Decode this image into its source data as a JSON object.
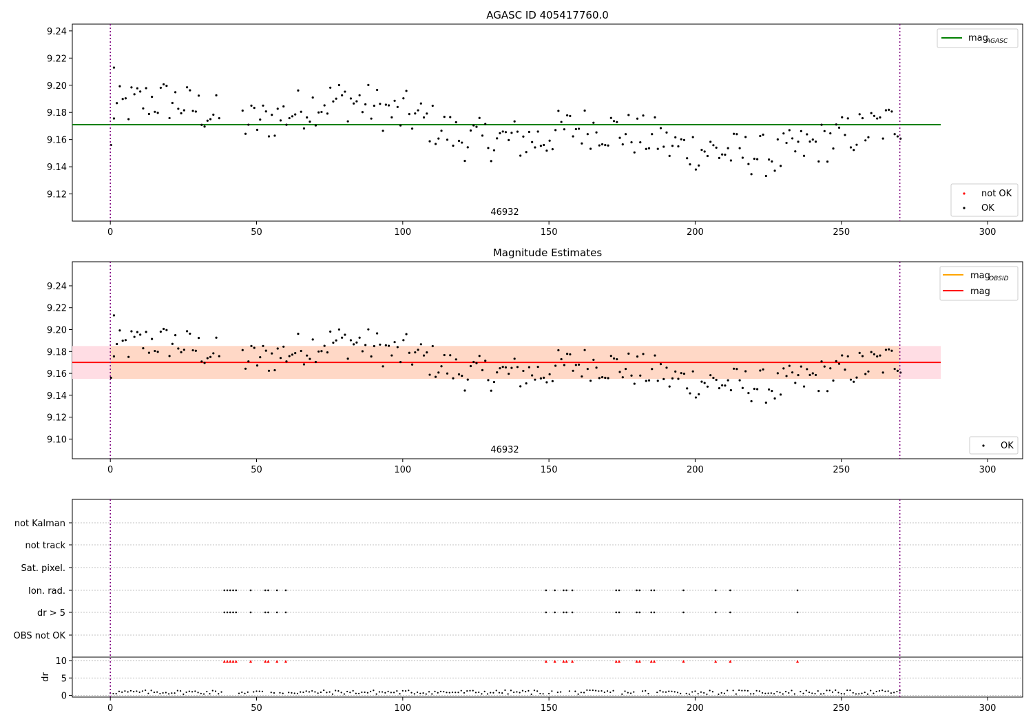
{
  "chart_data": [
    {
      "type": "scatter",
      "title": "AGASC ID 405417760.0",
      "annotation": "46932",
      "xlim": [
        -13,
        312
      ],
      "ylim": [
        9.1,
        9.245
      ],
      "xticks": [
        0,
        50,
        100,
        150,
        200,
        250,
        300
      ],
      "yticks": [
        9.12,
        9.14,
        9.16,
        9.18,
        9.2,
        9.22,
        9.24
      ],
      "ytick_labels": [
        "9.12",
        "9.14",
        "9.16",
        "9.18",
        "9.20",
        "9.22",
        "9.24"
      ],
      "grid": false,
      "legend_lines": [
        {
          "label": "mag",
          "sub": "AGASC",
          "color": "#008000"
        }
      ],
      "legend_points": [
        {
          "label": "not OK",
          "color": "#ff0000"
        },
        {
          "label": "OK",
          "color": "#000000"
        }
      ],
      "legend_placement": "top-right / bottom-right",
      "reference_line": {
        "name": "mag_AGASC",
        "y": 9.171,
        "x_range": [
          -13,
          284
        ],
        "color": "#008000"
      },
      "obs_boundaries": [
        0,
        270
      ],
      "vline_color": "#800080"
    },
    {
      "type": "scatter",
      "title": "Magnitude Estimates",
      "annotation": "46932",
      "xlim": [
        -13,
        312
      ],
      "ylim": [
        9.082,
        9.262
      ],
      "xticks": [
        0,
        50,
        100,
        150,
        200,
        250,
        300
      ],
      "yticks": [
        9.1,
        9.12,
        9.14,
        9.16,
        9.18,
        9.2,
        9.22,
        9.24
      ],
      "ytick_labels": [
        "9.10",
        "9.12",
        "9.14",
        "9.16",
        "9.18",
        "9.20",
        "9.22",
        "9.24"
      ],
      "grid": false,
      "legend_lines": [
        {
          "label": "mag",
          "sub": "OBSID",
          "color": "#ffa500"
        },
        {
          "label": "mag",
          "sub": "",
          "color": "#ff0000"
        }
      ],
      "legend_points": [
        {
          "label": "OK",
          "color": "#000000"
        }
      ],
      "legend_placement": "top-right / bottom-right",
      "mag_line": {
        "y": 9.17,
        "x_range": [
          -13,
          284
        ],
        "color": "#ff0000"
      },
      "band_outer": {
        "y0": 9.155,
        "y1": 9.185,
        "color": "#ffdde4"
      },
      "band_inner": {
        "x_range": [
          0,
          270
        ],
        "y0": 9.155,
        "y1": 9.185,
        "color": "#ffd8c6"
      },
      "obs_boundaries": [
        0,
        270
      ]
    },
    {
      "type": "scatter",
      "title": "",
      "categories": [
        "not Kalman",
        "not track",
        "Sat. pixel.",
        "Ion. rad.",
        "dr > 5",
        "OBS not OK"
      ],
      "flagged_x": [
        39,
        40,
        41,
        42,
        43,
        48,
        53,
        54,
        57,
        60,
        149,
        152,
        155,
        156,
        158,
        173,
        174,
        180,
        181,
        185,
        186,
        196,
        207,
        212,
        235
      ],
      "flag_rows": [
        "Ion. rad.",
        "dr > 5"
      ],
      "obs_boundaries": [
        0,
        270
      ],
      "grid": true
    },
    {
      "type": "scatter",
      "ylabel": "dr",
      "xlim": [
        -13,
        312
      ],
      "ylim": [
        -0.5,
        11
      ],
      "xticks": [
        0,
        50,
        100,
        150,
        200,
        250,
        300
      ],
      "yticks": [
        0,
        5,
        10
      ],
      "ytick_labels": [
        "0",
        "5",
        "10"
      ],
      "marker_red_y": 9.8,
      "obs_boundaries": [
        0,
        270
      ],
      "grid": true
    }
  ]
}
